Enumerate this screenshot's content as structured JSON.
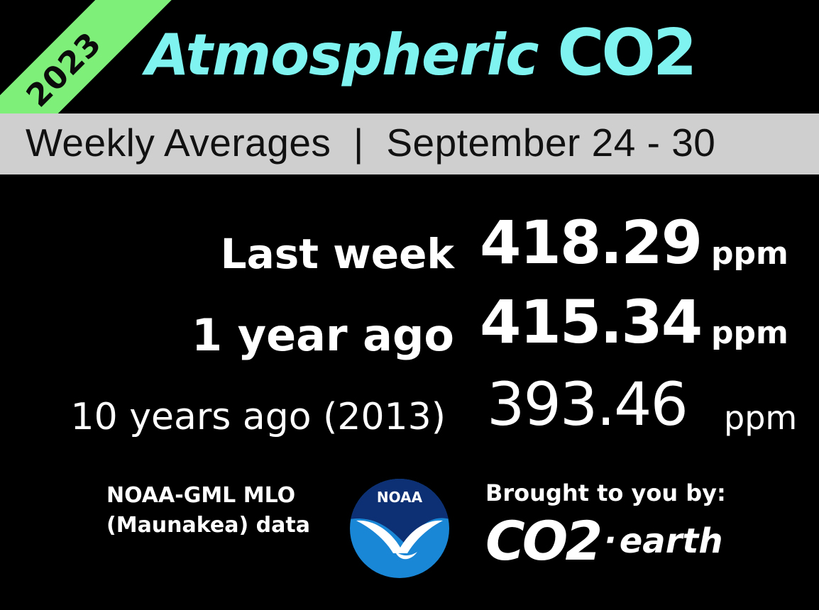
{
  "year_badge": "2023",
  "title": {
    "text": "Atmospheric ",
    "co2": "CO2"
  },
  "subtitle": "Weekly Averages  |  September 24 - 30",
  "readings": [
    {
      "label": "Last week",
      "value": "418.29",
      "unit": "ppm"
    },
    {
      "label": "1 year ago",
      "value": "415.34",
      "unit": "ppm"
    },
    {
      "label": "10 years ago (2013)",
      "value": "393.46",
      "unit": "ppm"
    }
  ],
  "credit": {
    "line1": "NOAA-GML MLO",
    "line2": "(Maunakea) data"
  },
  "noaa_logo": {
    "text": "NOAA",
    "icon": "noaa-logo-icon"
  },
  "brought_by": "Brought to you by:",
  "co2earth": {
    "main": "CO2",
    "dot": "·",
    "suffix": "earth"
  },
  "colors": {
    "background": "#000000",
    "title": "#7ff3f0",
    "ribbon": "#7ef07a",
    "band": "#cfcfcf",
    "noaa_blue": "#1a86d6"
  }
}
